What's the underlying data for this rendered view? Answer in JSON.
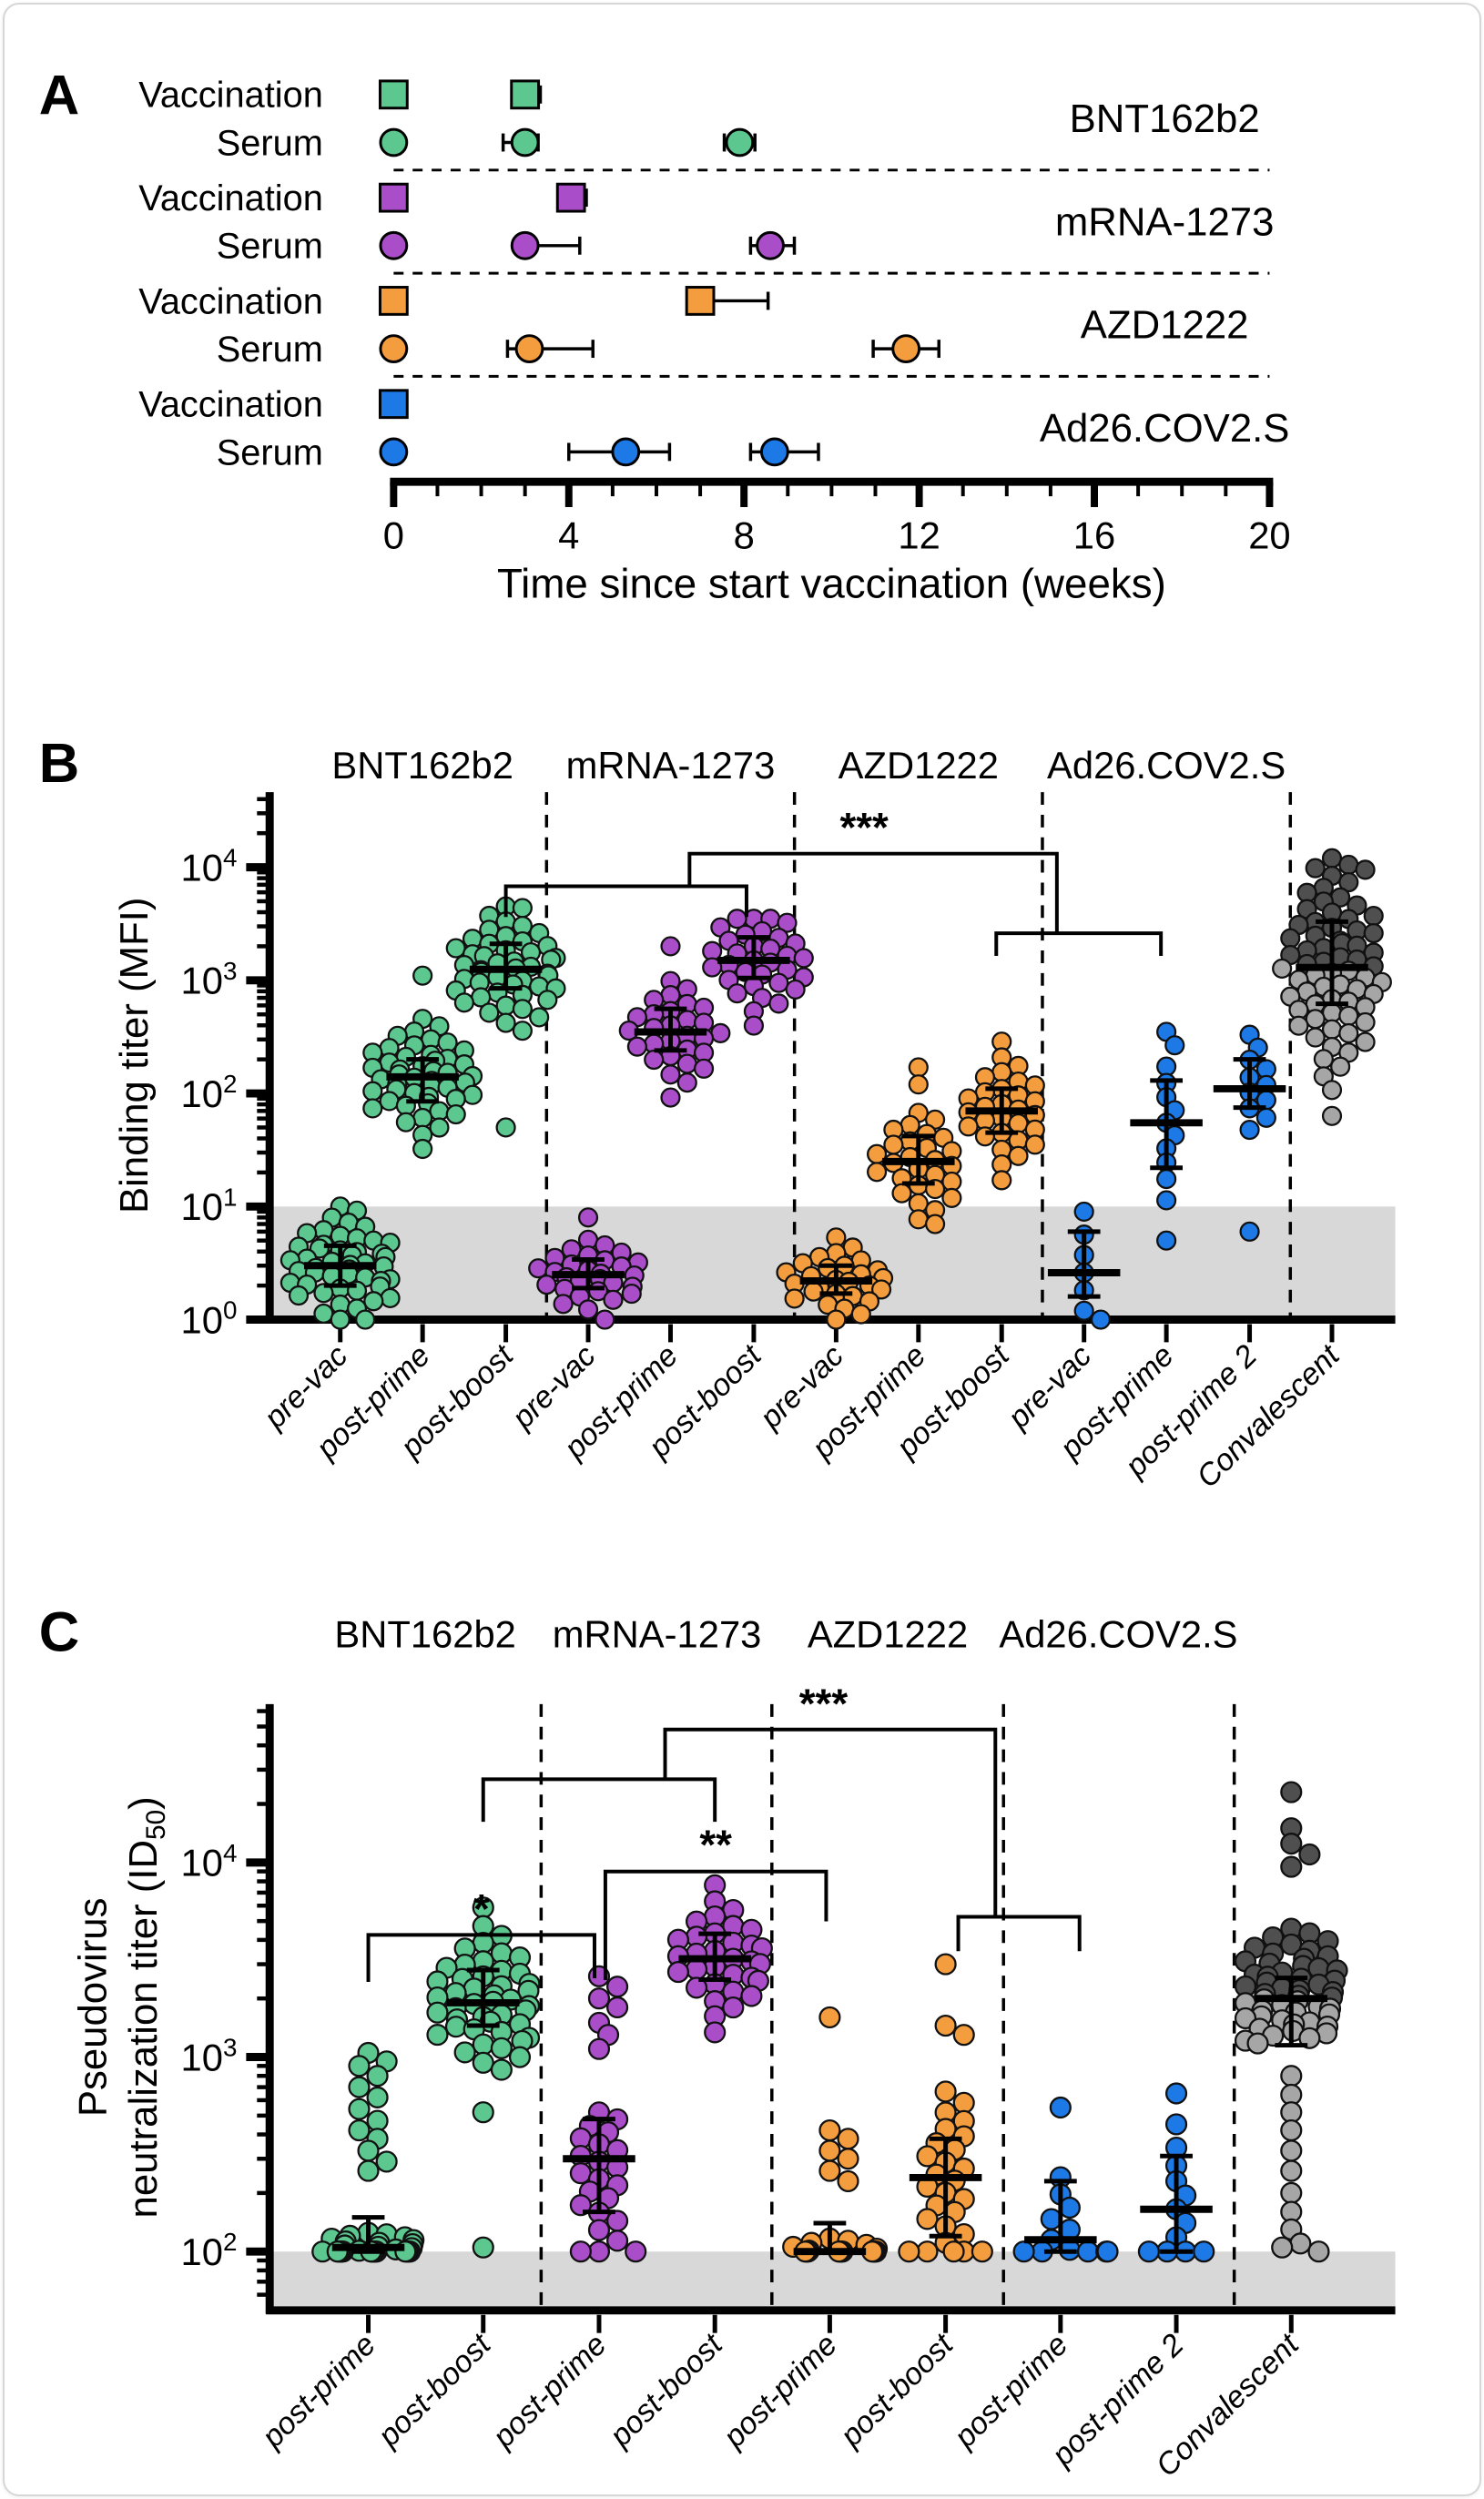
{
  "colors": {
    "BNT162b2": "#5CC78F",
    "mRNA-1273": "#A94EC8",
    "AZD1222": "#F49D3E",
    "Ad26.COV2.S": "#1C79E6",
    "convalescent_dark": "#4F4F4F",
    "convalescent_light": "#A6A6A6",
    "detection_band": "#D8D8D8",
    "axis": "#000000"
  },
  "chart_data": [
    {
      "panel": "A",
      "type": "timeline",
      "xlabel": "Time since start vaccination (weeks)",
      "xlim": [
        0,
        20
      ],
      "xticks": [
        0,
        4,
        8,
        12,
        16,
        20
      ],
      "minor_tick_every": 1,
      "row_label_vaccination": "Vaccination",
      "row_label_serum": "Serum",
      "groups": [
        {
          "vaccine": "BNT162b2",
          "color": "#5CC78F",
          "vaccination": [
            {
              "week": 0
            },
            {
              "week": 3,
              "minus": 0.15,
              "plus": 0.35
            }
          ],
          "serum": [
            {
              "week": 0
            },
            {
              "week": 3,
              "minus": 0.5,
              "plus": 0.3
            },
            {
              "week": 7.9,
              "minus": 0.35,
              "plus": 0.35
            }
          ]
        },
        {
          "vaccine": "mRNA-1273",
          "color": "#A94EC8",
          "vaccination": [
            {
              "week": 0
            },
            {
              "week": 4.05,
              "minus": 0.15,
              "plus": 0.35
            }
          ],
          "serum": [
            {
              "week": 0
            },
            {
              "week": 3,
              "minus": 0.15,
              "plus": 1.25
            },
            {
              "week": 8.6,
              "minus": 0.45,
              "plus": 0.55
            }
          ]
        },
        {
          "vaccine": "AZD1222",
          "color": "#F49D3E",
          "vaccination": [
            {
              "week": 0
            },
            {
              "week": 7,
              "minus": 0.15,
              "plus": 1.55
            }
          ],
          "serum": [
            {
              "week": 0
            },
            {
              "week": 3.1,
              "minus": 0.5,
              "plus": 1.45
            },
            {
              "week": 11.7,
              "minus": 0.75,
              "plus": 0.75
            }
          ]
        },
        {
          "vaccine": "Ad26.COV2.S",
          "color": "#1C79E6",
          "vaccination": [
            {
              "week": 0
            }
          ],
          "serum": [
            {
              "week": 0
            },
            {
              "week": 5.3,
              "minus": 1.3,
              "plus": 1.0
            },
            {
              "week": 8.7,
              "minus": 0.55,
              "plus": 1.0
            }
          ]
        }
      ]
    },
    {
      "panel": "B",
      "type": "beeswarm-log",
      "ylabel": "Binding titer (MFI)",
      "yticks": [
        {
          "base": "10",
          "exp": "0"
        },
        {
          "base": "10",
          "exp": "1"
        },
        {
          "base": "10",
          "exp": "2"
        },
        {
          "base": "10",
          "exp": "3"
        },
        {
          "base": "10",
          "exp": "4"
        }
      ],
      "column_headers": [
        "BNT162b2",
        "mRNA-1273",
        "AZD1222",
        "Ad26.COV2.S"
      ],
      "detection_limit": 10,
      "floor": 1,
      "groups": [
        {
          "vaccine": "BNT162b2",
          "timepoint": "pre-vac",
          "color": "#5CC78F",
          "n": 48,
          "median": 3,
          "q1": 2,
          "q3": 4.5,
          "min": 1,
          "max": 10
        },
        {
          "vaccine": "BNT162b2",
          "timepoint": "post-prime",
          "color": "#5CC78F",
          "n": 48,
          "median": 140,
          "q1": 85,
          "q3": 200,
          "min": 22,
          "max": 1100,
          "high_outliers": [
            1100
          ]
        },
        {
          "vaccine": "BNT162b2",
          "timepoint": "post-boost",
          "color": "#5CC78F",
          "n": 48,
          "median": 1250,
          "q1": 850,
          "q3": 2100,
          "min": 50,
          "max": 4500,
          "low_outliers": [
            50
          ]
        },
        {
          "vaccine": "mRNA-1273",
          "timepoint": "pre-vac",
          "color": "#A94EC8",
          "n": 30,
          "median": 2.5,
          "q1": 1.9,
          "q3": 3.4,
          "min": 1,
          "max": 8,
          "high_outliers": [
            8
          ]
        },
        {
          "vaccine": "mRNA-1273",
          "timepoint": "post-prime",
          "color": "#A94EC8",
          "n": 30,
          "median": 350,
          "q1": 240,
          "q3": 560,
          "min": 35,
          "max": 2000,
          "high_outliers": [
            2000
          ]
        },
        {
          "vaccine": "mRNA-1273",
          "timepoint": "post-boost",
          "color": "#A94EC8",
          "n": 33,
          "median": 1500,
          "q1": 1050,
          "q3": 2400,
          "min": 350,
          "max": 3500
        },
        {
          "vaccine": "AZD1222",
          "timepoint": "pre-vac",
          "color": "#F49D3E",
          "n": 28,
          "median": 2.2,
          "q1": 1.7,
          "q3": 3,
          "min": 1,
          "max": 6
        },
        {
          "vaccine": "AZD1222",
          "timepoint": "post-prime",
          "color": "#F49D3E",
          "n": 30,
          "median": 25,
          "q1": 16,
          "q3": 42,
          "min": 7,
          "max": 170,
          "high_outliers": [
            170,
            120
          ]
        },
        {
          "vaccine": "AZD1222",
          "timepoint": "post-boost",
          "color": "#F49D3E",
          "n": 30,
          "median": 70,
          "q1": 45,
          "q3": 110,
          "min": 11,
          "max": 290
        },
        {
          "vaccine": "Ad26.COV2.S",
          "timepoint": "pre-vac",
          "color": "#1C79E6",
          "n": 7,
          "median": 2.6,
          "q1": 1.6,
          "q3": 6,
          "min": 1,
          "max": 9
        },
        {
          "vaccine": "Ad26.COV2.S",
          "timepoint": "post-prime",
          "color": "#1C79E6",
          "n": 13,
          "median": 55,
          "q1": 22,
          "q3": 130,
          "min": 5,
          "max": 350,
          "low_outliers": [
            5
          ]
        },
        {
          "vaccine": "Ad26.COV2.S",
          "timepoint": "post-prime 2",
          "color": "#1C79E6",
          "n": 12,
          "median": 110,
          "q1": 75,
          "q3": 200,
          "min": 6,
          "max": 330,
          "low_outliers": [
            6
          ]
        },
        {
          "vaccine": "Convalescent",
          "timepoint": "Convalescent",
          "color": "#4F4F4F",
          "color2": "#A6A6A6",
          "n": 68,
          "median": 1300,
          "q1": 620,
          "q3": 3300,
          "min": 60,
          "max": 12000,
          "high_outliers": [
            12000,
            10500,
            9500
          ]
        }
      ],
      "brackets": [
        {
          "label": "",
          "points": [
            [
              554,
              1005
            ],
            [
              554,
              971
            ],
            [
              820,
              971
            ],
            [
              820,
              1005
            ]
          ]
        },
        {
          "label": "***",
          "label_xy": [
            950,
            922
          ],
          "points": [
            [
              757,
              971
            ],
            [
              757,
              935
            ],
            [
              1163,
              935
            ],
            [
              1163,
              1023
            ]
          ]
        },
        {
          "label": "",
          "points": [
            [
              1096,
              1048
            ],
            [
              1096,
              1023
            ],
            [
              1278,
              1023
            ],
            [
              1278,
              1048
            ]
          ]
        }
      ]
    },
    {
      "panel": "C",
      "type": "beeswarm-log",
      "ylabel_line1": "Pseudovirus",
      "ylabel_line2_pre": "neutralization titer (ID",
      "ylabel_line2_sub": "50",
      "ylabel_line2_post": ")",
      "yticks": [
        {
          "base": "10",
          "exp": "2"
        },
        {
          "base": "10",
          "exp": "3"
        },
        {
          "base": "10",
          "exp": "4"
        }
      ],
      "column_headers": [
        "BNT162b2",
        "mRNA-1273",
        "AZD1222",
        "Ad26.COV2.S"
      ],
      "detection_limit": 100,
      "floor": 100,
      "groups": [
        {
          "vaccine": "BNT162b2",
          "timepoint": "post-prime",
          "color": "#5CC78F",
          "n": 48,
          "median": 105,
          "q1": 100,
          "q3": 150,
          "min": 100,
          "max": 1050,
          "high_outliers": [
            1050,
            950,
            900,
            800,
            700,
            620,
            540,
            470,
            420,
            380,
            330,
            290,
            260
          ]
        },
        {
          "vaccine": "BNT162b2",
          "timepoint": "post-boost",
          "color": "#5CC78F",
          "n": 48,
          "median": 1900,
          "q1": 1450,
          "q3": 2800,
          "min": 100,
          "max": 7200,
          "low_outliers": [
            105,
            520
          ]
        },
        {
          "vaccine": "mRNA-1273",
          "timepoint": "post-prime",
          "color": "#A94EC8",
          "n": 30,
          "median": 300,
          "q1": 160,
          "q3": 480,
          "min": 100,
          "max": 2600,
          "high_outliers": [
            2600,
            2300,
            2000,
            1800,
            1500,
            1300,
            1100
          ]
        },
        {
          "vaccine": "mRNA-1273",
          "timepoint": "post-boost",
          "color": "#A94EC8",
          "n": 33,
          "median": 3200,
          "q1": 2500,
          "q3": 4300,
          "min": 800,
          "max": 8200
        },
        {
          "vaccine": "AZD1222",
          "timepoint": "post-prime",
          "color": "#F49D3E",
          "n": 28,
          "median": 100,
          "q1": 100,
          "q3": 140,
          "min": 100,
          "max": 1600,
          "high_outliers": [
            1600,
            420,
            380,
            330,
            300,
            260,
            230
          ]
        },
        {
          "vaccine": "AZD1222",
          "timepoint": "post-boost",
          "color": "#F49D3E",
          "n": 30,
          "median": 240,
          "q1": 120,
          "q3": 380,
          "min": 100,
          "max": 3000,
          "high_outliers": [
            3000,
            1450,
            1300
          ]
        },
        {
          "vaccine": "Ad26.COV2.S",
          "timepoint": "post-prime",
          "color": "#1C79E6",
          "n": 13,
          "median": 115,
          "q1": 100,
          "q3": 230,
          "min": 100,
          "max": 550,
          "high_outliers": [
            550
          ]
        },
        {
          "vaccine": "Ad26.COV2.S",
          "timepoint": "post-prime 2",
          "color": "#1C79E6",
          "n": 13,
          "median": 165,
          "q1": 100,
          "q3": 310,
          "min": 100,
          "max": 650,
          "high_outliers": [
            650
          ]
        },
        {
          "vaccine": "Convalescent",
          "timepoint": "Convalescent",
          "color": "#4F4F4F",
          "color2": "#A6A6A6",
          "n": 68,
          "median": 2000,
          "q1": 1150,
          "q3": 2550,
          "min": 100,
          "max": 23000,
          "high_outliers": [
            23000,
            15000,
            12500,
            11000,
            9500
          ],
          "low_outliers": [
            100,
            105,
            110,
            130,
            160,
            200,
            260,
            330,
            420,
            520,
            640,
            800
          ]
        }
      ],
      "brackets": [
        {
          "label": "*",
          "label_xy": [
            527,
            2117
          ],
          "points": [
            [
              402,
              2182
            ],
            [
              402,
              2130
            ],
            [
              652,
              2130
            ],
            [
              652,
              2178
            ]
          ]
        },
        {
          "label": "**",
          "label_xy": [
            786,
            2046
          ],
          "points": [
            [
              664,
              2180
            ],
            [
              664,
              2060
            ],
            [
              908,
              2060
            ],
            [
              908,
              2115
            ]
          ]
        },
        {
          "label": "",
          "points": [
            [
              529,
              2005
            ],
            [
              529,
              1958
            ],
            [
              785,
              1958
            ],
            [
              785,
              2005
            ]
          ]
        },
        {
          "label": "***",
          "label_xy": [
            905,
            1890
          ],
          "points": [
            [
              730,
              1958
            ],
            [
              730,
              1903
            ],
            [
              1095,
              1903
            ],
            [
              1095,
              2110
            ]
          ]
        },
        {
          "label": "",
          "points": [
            [
              1054,
              2148
            ],
            [
              1054,
              2110
            ],
            [
              1188,
              2110
            ],
            [
              1188,
              2148
            ]
          ]
        }
      ]
    }
  ]
}
